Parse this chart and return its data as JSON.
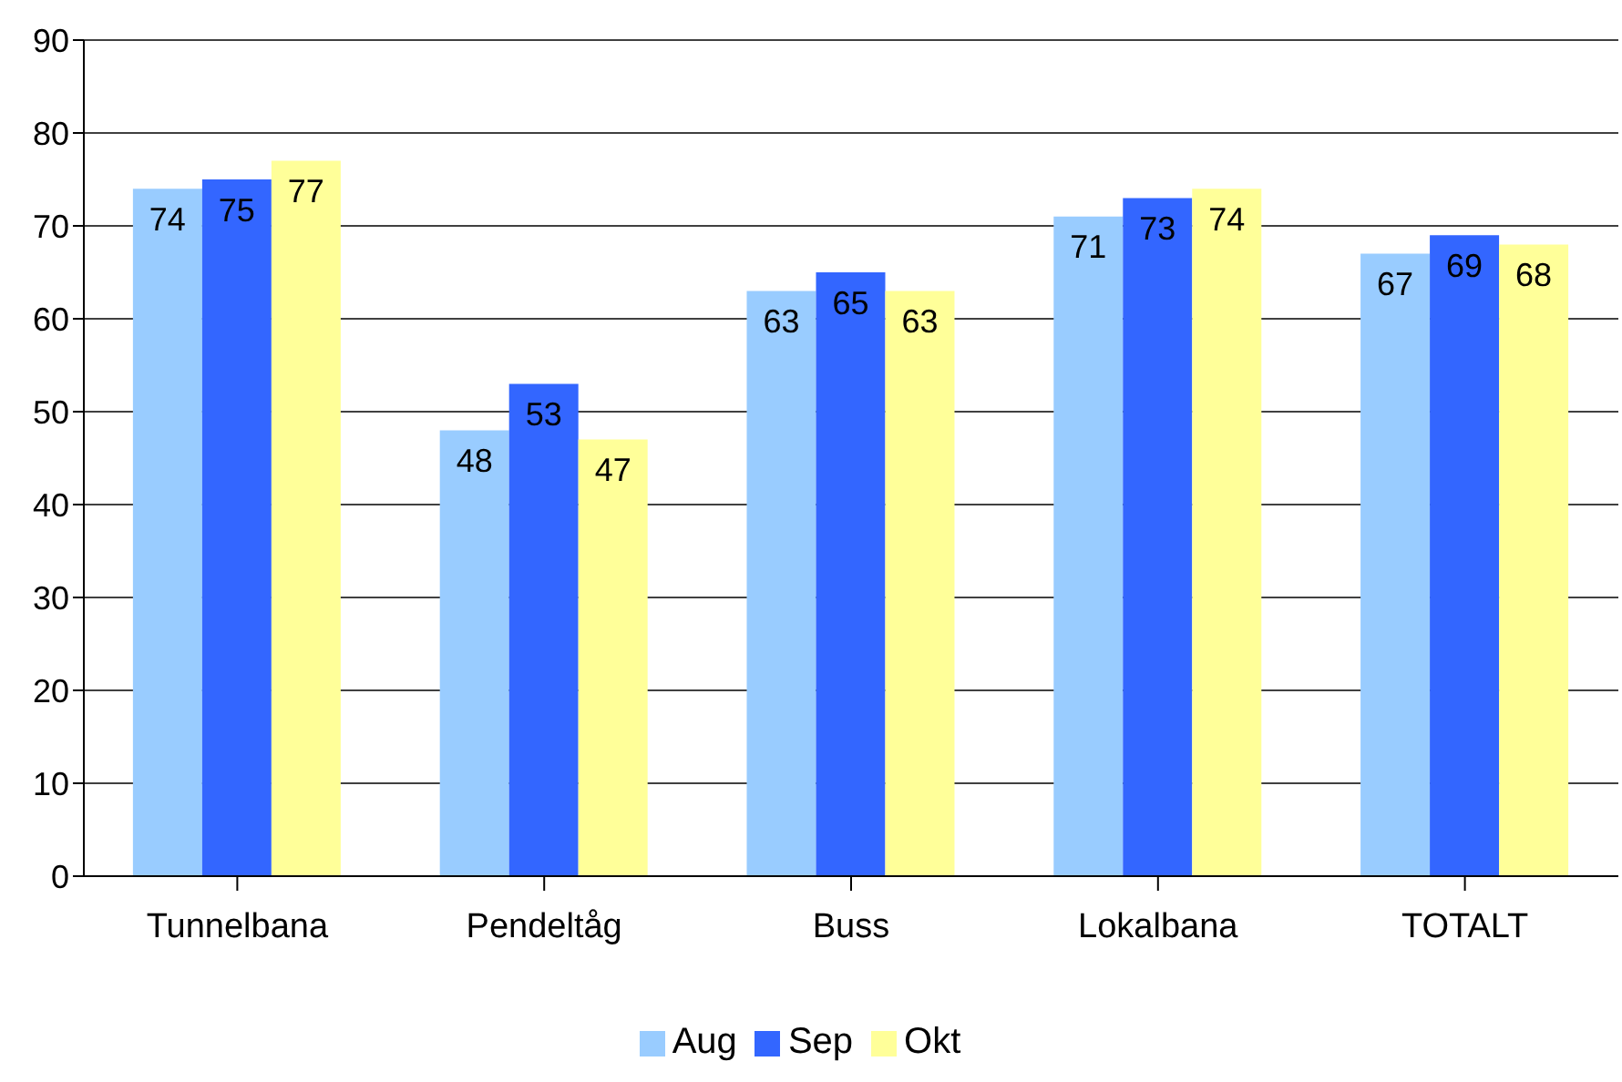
{
  "chart_data": {
    "type": "bar",
    "categories": [
      "Tunnelbana",
      "Pendeltåg",
      "Buss",
      "Lokalbana",
      "TOTALT"
    ],
    "series": [
      {
        "name": "Aug",
        "color": "#99ccff",
        "values": [
          74,
          48,
          63,
          71,
          67
        ]
      },
      {
        "name": "Sep",
        "color": "#3366ff",
        "values": [
          75,
          53,
          65,
          73,
          69
        ]
      },
      {
        "name": "Okt",
        "color": "#ffff99",
        "values": [
          77,
          47,
          63,
          74,
          68
        ]
      }
    ],
    "ylim": [
      0,
      90
    ],
    "yticks": [
      0,
      10,
      20,
      30,
      40,
      50,
      60,
      70,
      80,
      90
    ],
    "grid": "y",
    "legend": "bottom",
    "data_labels": true
  }
}
